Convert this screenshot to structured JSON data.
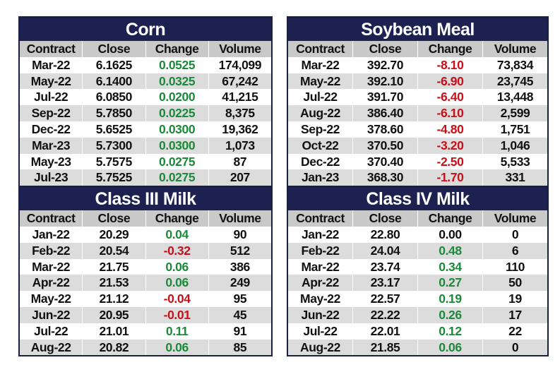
{
  "columns": [
    "Contract",
    "Close",
    "Change",
    "Volume"
  ],
  "colors": {
    "title_bg": "#1d2150",
    "header_bg": "#c9c9c9",
    "alt_row": "#dcdcdc",
    "positive": "#1b8a3a",
    "negative": "#c8101a"
  },
  "tables": {
    "corn": {
      "title": "Corn",
      "rows": [
        [
          "Mar-22",
          "6.1625",
          "0.0525",
          "174,099"
        ],
        [
          "May-22",
          "6.1400",
          "0.0325",
          "67,242"
        ],
        [
          "Jul-22",
          "6.0850",
          "0.0200",
          "41,215"
        ],
        [
          "Sep-22",
          "5.7850",
          "0.0225",
          "8,375"
        ],
        [
          "Dec-22",
          "5.6525",
          "0.0300",
          "19,362"
        ],
        [
          "Mar-23",
          "5.7300",
          "0.0300",
          "1,073"
        ],
        [
          "May-23",
          "5.7575",
          "0.0275",
          "87"
        ],
        [
          "Jul-23",
          "5.7525",
          "0.0275",
          "207"
        ]
      ]
    },
    "soybean_meal": {
      "title": "Soybean Meal",
      "rows": [
        [
          "Mar-22",
          "392.70",
          "-8.10",
          "73,834"
        ],
        [
          "May-22",
          "392.10",
          "-6.90",
          "23,745"
        ],
        [
          "Jul-22",
          "391.70",
          "-6.40",
          "13,448"
        ],
        [
          "Aug-22",
          "386.40",
          "-6.10",
          "2,599"
        ],
        [
          "Sep-22",
          "378.60",
          "-4.80",
          "1,751"
        ],
        [
          "Oct-22",
          "370.50",
          "-3.20",
          "1,046"
        ],
        [
          "Dec-22",
          "370.40",
          "-2.50",
          "5,533"
        ],
        [
          "Jan-23",
          "368.30",
          "-1.70",
          "331"
        ]
      ]
    },
    "class3_milk": {
      "title": "Class III Milk",
      "rows": [
        [
          "Jan-22",
          "20.29",
          "0.04",
          "90"
        ],
        [
          "Feb-22",
          "20.54",
          "-0.32",
          "512"
        ],
        [
          "Mar-22",
          "21.75",
          "0.06",
          "386"
        ],
        [
          "Apr-22",
          "21.53",
          "0.06",
          "249"
        ],
        [
          "May-22",
          "21.12",
          "-0.04",
          "95"
        ],
        [
          "Jun-22",
          "20.95",
          "-0.01",
          "45"
        ],
        [
          "Jul-22",
          "21.01",
          "0.11",
          "91"
        ],
        [
          "Aug-22",
          "20.82",
          "0.06",
          "85"
        ]
      ]
    },
    "class4_milk": {
      "title": "Class IV Milk",
      "rows": [
        [
          "Jan-22",
          "22.80",
          "0.00",
          "0"
        ],
        [
          "Feb-22",
          "24.04",
          "0.48",
          "6"
        ],
        [
          "Mar-22",
          "23.74",
          "0.34",
          "110"
        ],
        [
          "Apr-22",
          "23.17",
          "0.27",
          "50"
        ],
        [
          "May-22",
          "22.57",
          "0.19",
          "19"
        ],
        [
          "Jun-22",
          "22.22",
          "0.26",
          "17"
        ],
        [
          "Jul-22",
          "22.01",
          "0.12",
          "22"
        ],
        [
          "Aug-22",
          "21.85",
          "0.06",
          "0"
        ]
      ]
    }
  }
}
